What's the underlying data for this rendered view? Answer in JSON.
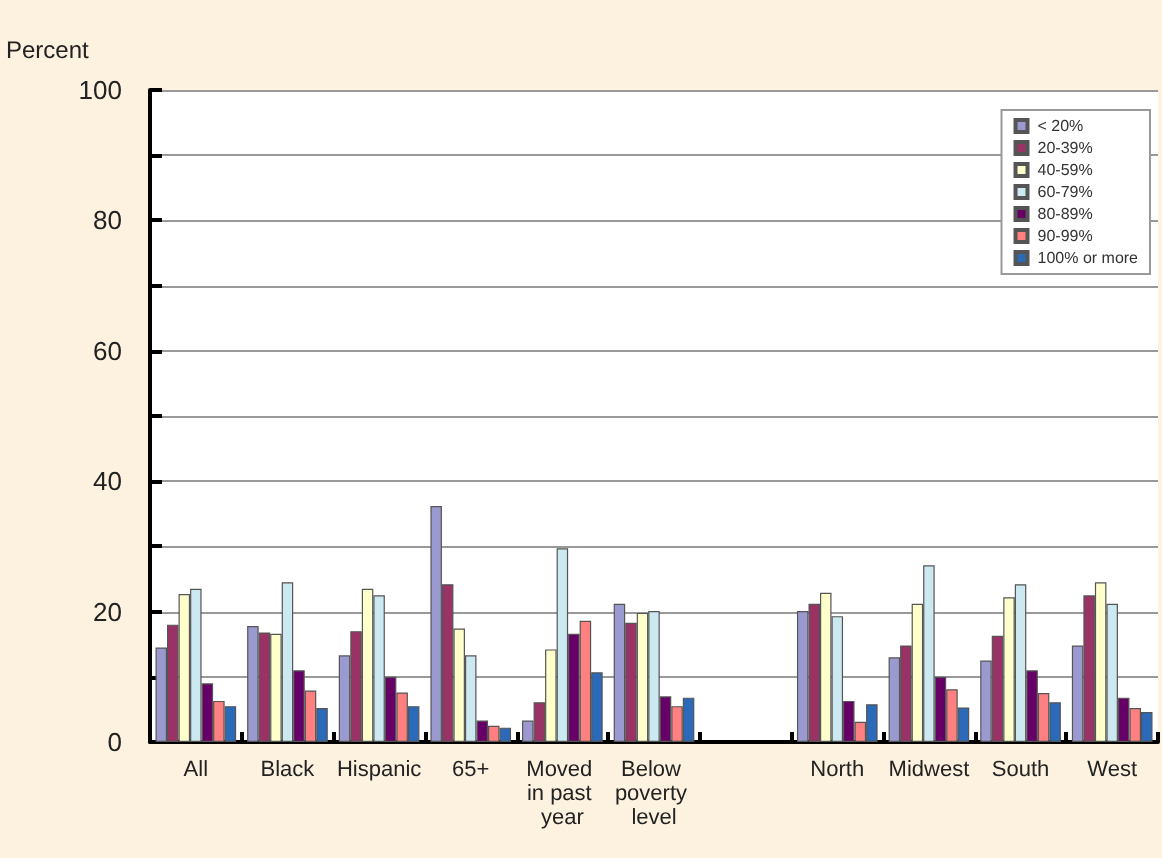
{
  "chart_data": {
    "type": "bar",
    "ylabel": "Percent",
    "categories": [
      "All",
      "Black",
      "Hispanic",
      "65+",
      "Moved in past year",
      "Below poverty level",
      null,
      "North",
      "Midwest",
      "South",
      "West"
    ],
    "series": [
      {
        "name": "< 20%",
        "color": "#9a9ad0",
        "values": [
          14.5,
          17.8,
          13.3,
          36.2,
          3.3,
          21.2,
          null,
          20.1,
          13,
          12.5,
          14.8
        ]
      },
      {
        "name": "20-39%",
        "color": "#993366",
        "values": [
          18,
          16.8,
          17,
          24.2,
          6.1,
          18.3,
          null,
          21.2,
          14.8,
          16.3,
          22.5
        ]
      },
      {
        "name": "40-59%",
        "color": "#ffffcc",
        "values": [
          22.7,
          16.6,
          23.5,
          17.4,
          14.2,
          19.8,
          null,
          22.9,
          21.2,
          22.2,
          24.5
        ]
      },
      {
        "name": "60-79%",
        "color": "#cce8f0",
        "values": [
          23.5,
          24.5,
          22.5,
          13.3,
          29.7,
          20.1,
          null,
          19.3,
          27.1,
          24.2,
          21.2
        ]
      },
      {
        "name": "80-89%",
        "color": "#660066",
        "values": [
          9,
          11,
          10,
          3.3,
          16.6,
          7,
          null,
          6.3,
          10,
          11,
          6.8
        ]
      },
      {
        "name": "90-99%",
        "color": "#ff8080",
        "values": [
          6.3,
          7.9,
          7.6,
          2.5,
          18.6,
          5.5,
          null,
          3.1,
          8.1,
          7.5,
          5.2
        ]
      },
      {
        "name": "100% or more",
        "color": "#2a6ab8",
        "values": [
          5.5,
          5.2,
          5.5,
          2.2,
          10.7,
          6.8,
          null,
          5.8,
          5.3,
          6.1,
          4.6
        ]
      }
    ],
    "ylim": [
      0,
      100
    ],
    "yticks": [
      0,
      {
        "value": 10,
        "label": null
      },
      20,
      {
        "value": 30,
        "label": null
      },
      40,
      {
        "value": 50,
        "label": null
      },
      60,
      {
        "value": 70,
        "label": null
      },
      80,
      {
        "value": 90,
        "label": null
      },
      100
    ],
    "grid": true,
    "legend": "top right"
  }
}
